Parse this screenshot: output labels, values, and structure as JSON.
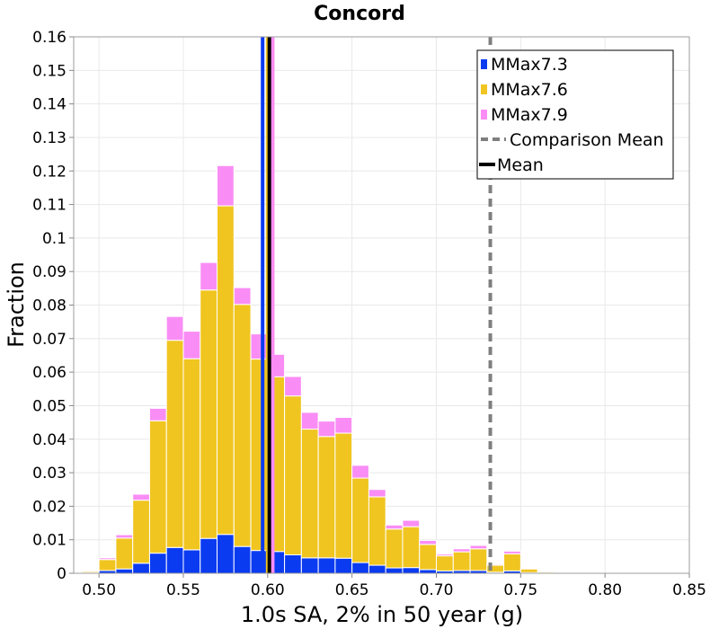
{
  "chart_data": {
    "type": "bar",
    "stacked": true,
    "title": "Concord",
    "xlabel": "1.0s SA, 2% in 50 year (g)",
    "ylabel": "Fraction",
    "xlim": [
      0.485,
      0.85
    ],
    "ylim": [
      0,
      0.16
    ],
    "bin_width": 0.01,
    "x_ticks": [
      "0.50",
      "0.55",
      "0.60",
      "0.65",
      "0.70",
      "0.75",
      "0.80",
      "0.85"
    ],
    "x_tick_values": [
      0.5,
      0.55,
      0.6,
      0.65,
      0.7,
      0.75,
      0.8,
      0.85
    ],
    "y_ticks": [
      "0",
      "0.01",
      "0.02",
      "0.03",
      "0.04",
      "0.05",
      "0.06",
      "0.07",
      "0.08",
      "0.09",
      "0.1",
      "0.11",
      "0.12",
      "0.13",
      "0.14",
      "0.15",
      "0.16"
    ],
    "y_tick_values": [
      0,
      0.01,
      0.02,
      0.03,
      0.04,
      0.05,
      0.06,
      0.07,
      0.08,
      0.09,
      0.1,
      0.11,
      0.12,
      0.13,
      0.14,
      0.15,
      0.16
    ],
    "grid": true,
    "legend_position": "top-right",
    "x_bin_left_edges": [
      0.49,
      0.5,
      0.51,
      0.52,
      0.53,
      0.54,
      0.55,
      0.56,
      0.57,
      0.58,
      0.59,
      0.6,
      0.61,
      0.62,
      0.63,
      0.64,
      0.65,
      0.66,
      0.67,
      0.68,
      0.69,
      0.7,
      0.71,
      0.72,
      0.73,
      0.74,
      0.75,
      0.76
    ],
    "series": [
      {
        "name": "MMax7.3",
        "color": "#0b3bf0",
        "values": [
          0.0002,
          0.0008,
          0.0013,
          0.003,
          0.006,
          0.0077,
          0.007,
          0.0104,
          0.0116,
          0.008,
          0.0068,
          0.0065,
          0.0055,
          0.0046,
          0.0046,
          0.0045,
          0.0032,
          0.0024,
          0.0016,
          0.0017,
          0.0011,
          0.0007,
          0.0008,
          0.0008,
          0.0003,
          0.0007,
          0.0002,
          0.0001
        ]
      },
      {
        "name": "MMax7.6",
        "color": "#f0c520",
        "values": [
          0.0004,
          0.0033,
          0.0092,
          0.0188,
          0.0395,
          0.0618,
          0.057,
          0.0741,
          0.098,
          0.0722,
          0.0571,
          0.0521,
          0.0474,
          0.0384,
          0.0362,
          0.0373,
          0.0252,
          0.0204,
          0.0116,
          0.0122,
          0.0075,
          0.0045,
          0.0056,
          0.0065,
          0.0021,
          0.0051,
          0.0011,
          0.0003
        ]
      },
      {
        "name": "MMax7.9",
        "color": "#f98df5",
        "values": [
          0.0001,
          0.0005,
          0.001,
          0.0018,
          0.0037,
          0.0071,
          0.0082,
          0.0082,
          0.012,
          0.005,
          0.0075,
          0.0067,
          0.0058,
          0.005,
          0.0046,
          0.0047,
          0.0038,
          0.0022,
          0.0012,
          0.0019,
          0.0012,
          0.0005,
          0.0009,
          0.001,
          0.0003,
          0.0008,
          0.0002,
          0.0001
        ]
      }
    ],
    "reference_lines": [
      {
        "name": "Comparison Mean",
        "x": 0.732,
        "style": "dashed",
        "color": "#7f7f7f"
      },
      {
        "name": "Mean",
        "x": 0.601,
        "style": "solid",
        "color": "#000000"
      },
      {
        "name": "",
        "x": 0.597,
        "style": "solid",
        "color": "#0b3bf0"
      },
      {
        "name": "",
        "x": 0.6,
        "style": "solid",
        "color": "#f0c520"
      },
      {
        "name": "",
        "x": 0.603,
        "style": "solid",
        "color": "#f98df5"
      }
    ],
    "legend": [
      {
        "label": "MMax7.3",
        "kind": "box",
        "color": "#0b3bf0"
      },
      {
        "label": "MMax7.6",
        "kind": "box",
        "color": "#f0c520"
      },
      {
        "label": "MMax7.9",
        "kind": "box",
        "color": "#f98df5"
      },
      {
        "label": "Comparison Mean",
        "kind": "dashed",
        "color": "#7f7f7f"
      },
      {
        "label": "Mean",
        "kind": "solid",
        "color": "#000000"
      }
    ]
  }
}
